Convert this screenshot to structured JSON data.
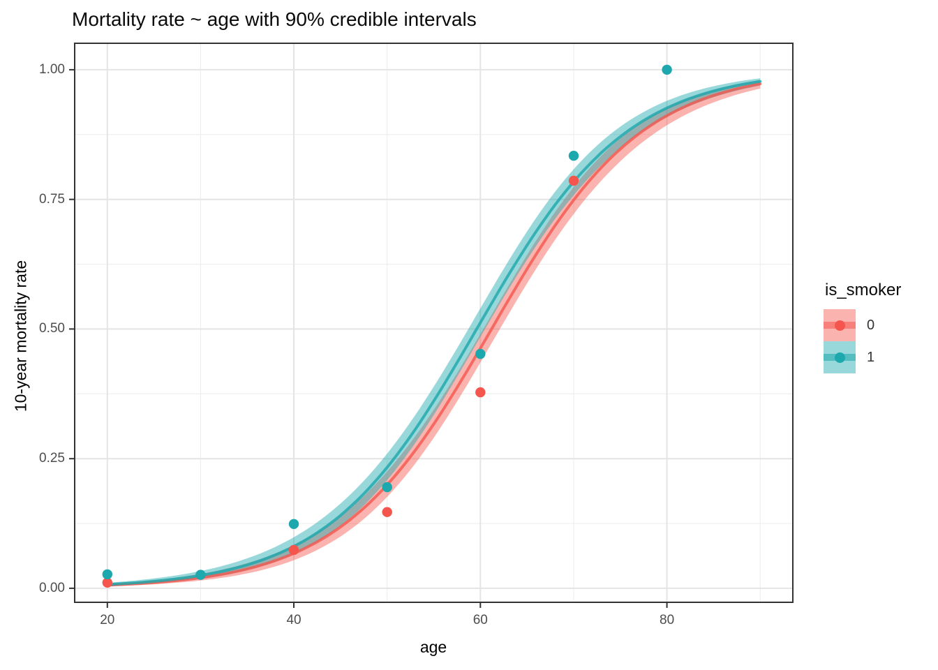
{
  "chart_data": {
    "type": "scatter",
    "title": "Mortality rate ~ age with 90% credible intervals",
    "xlabel": "age",
    "ylabel": "10-year mortality rate",
    "xlim": [
      16.5,
      93.5
    ],
    "ylim": [
      -0.027,
      1.051
    ],
    "grid": true,
    "x_ticks": [
      20,
      40,
      60,
      80
    ],
    "x_minor_ticks": [
      30,
      50,
      70,
      90
    ],
    "y_ticks": [
      {
        "value": 0.0,
        "label": "0.00"
      },
      {
        "value": 0.25,
        "label": "0.25"
      },
      {
        "value": 0.5,
        "label": "0.50"
      },
      {
        "value": 0.75,
        "label": "0.75"
      },
      {
        "value": 1.0,
        "label": "1.00"
      }
    ],
    "y_minor_ticks": [
      0.125,
      0.375,
      0.625,
      0.875
    ],
    "ribbon_note": "90% credible intervals",
    "legend": {
      "title": "is_smoker",
      "position": "right",
      "entries": [
        {
          "label": "0",
          "color": "#F4564E"
        },
        {
          "label": "1",
          "color": "#1CA8AC"
        }
      ]
    },
    "series": [
      {
        "name": "0",
        "color": "#F4564E",
        "points": {
          "x": [
            20,
            40,
            50,
            60,
            70
          ],
          "y": [
            0.011,
            0.074,
            0.147,
            0.378,
            0.786
          ]
        },
        "fit": {
          "type": "logistic",
          "midpoint": 61.2,
          "slope": 0.124,
          "x_range": [
            20,
            90
          ]
        },
        "ribbon": {
          "logit_halfwidth_base": 0.11,
          "logit_halfwidth_growth": 0.0095,
          "opacity": 0.45
        }
      },
      {
        "name": "1",
        "color": "#1CA8AC",
        "points": {
          "x": [
            20,
            30,
            40,
            50,
            60,
            70,
            80
          ],
          "y": [
            0.027,
            0.026,
            0.124,
            0.195,
            0.452,
            0.834,
            1.0
          ]
        },
        "fit": {
          "type": "logistic",
          "midpoint": 59.6,
          "slope": 0.124,
          "x_range": [
            20,
            90
          ]
        },
        "ribbon": {
          "logit_halfwidth_base": 0.11,
          "logit_halfwidth_growth": 0.0095,
          "opacity": 0.45
        }
      }
    ],
    "style": {
      "line_width": 4,
      "line_opacity": 0.8,
      "point_radius": 7.2,
      "grid_major_color": "#E4E4E4",
      "grid_minor_color": "#ECECEC",
      "panel_border_color": "#333333",
      "tick_color": "#333333",
      "tick_label_color": "#4D4D4D",
      "axis_title_color": "#000000",
      "panel_background": "#FFFFFF"
    }
  }
}
